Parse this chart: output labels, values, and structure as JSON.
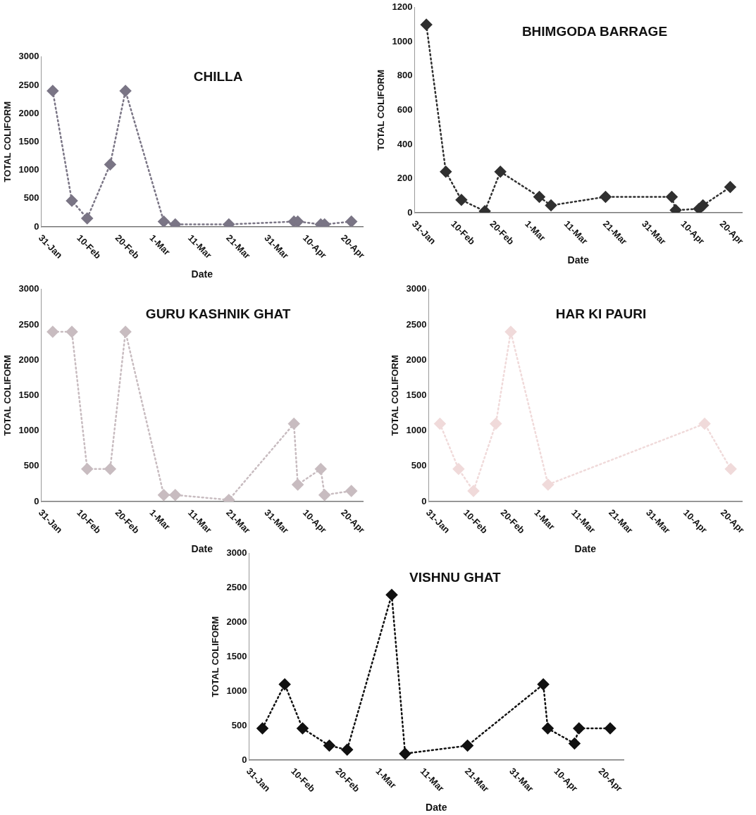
{
  "chart_data": [
    {
      "type": "line",
      "title": "CHILLA",
      "xlabel": "Date",
      "ylabel": "TOTAL COLIFORM",
      "marker": "diamond",
      "line_style": "dotted",
      "color": "#7a7585",
      "x": [
        "--02-03",
        "--02-08",
        "--02-12",
        "--02-18",
        "--02-22",
        "--03-04",
        "--03-07",
        "--03-21",
        "--04-07",
        "--04-08",
        "--04-14",
        "--04-15",
        "--04-22"
      ],
      "values": [
        2400,
        460,
        150,
        1100,
        2400,
        93,
        43,
        43,
        93,
        93,
        43,
        43,
        93
      ],
      "xlim": [
        "--01-31",
        "--04-25"
      ],
      "xticks": [
        {
          "value": "--01-31",
          "label": "31-Jan"
        },
        {
          "value": "--02-10",
          "label": "10-Feb"
        },
        {
          "value": "--02-20",
          "label": "20-Feb"
        },
        {
          "value": "--03-01",
          "label": "1-Mar"
        },
        {
          "value": "--03-11",
          "label": "11-Mar"
        },
        {
          "value": "--03-21",
          "label": "21-Mar"
        },
        {
          "value": "--03-31",
          "label": "31-Mar"
        },
        {
          "value": "--04-10",
          "label": "10-Apr"
        },
        {
          "value": "--04-20",
          "label": "20-Apr"
        }
      ],
      "ylim": [
        0,
        3000
      ],
      "yticks": [
        0,
        500,
        1000,
        1500,
        2000,
        2500,
        3000
      ]
    },
    {
      "type": "line",
      "title": "BHIMGODA BARRAGE",
      "xlabel": "Date",
      "ylabel": "TOTAL COLIFORM",
      "marker": "diamond",
      "line_style": "dotted",
      "color": "#303030",
      "x": [
        "--02-03",
        "--02-08",
        "--02-12",
        "--02-18",
        "--02-22",
        "--03-04",
        "--03-07",
        "--03-21",
        "--04-07",
        "--04-08",
        "--04-14",
        "--04-15",
        "--04-22"
      ],
      "values": [
        1100,
        240,
        75,
        9,
        240,
        93,
        43,
        93,
        93,
        15,
        23,
        43,
        150
      ],
      "xlim": [
        "--01-31",
        "--04-25"
      ],
      "xticks": [
        {
          "value": "--01-31",
          "label": "31-Jan"
        },
        {
          "value": "--02-10",
          "label": "10-Feb"
        },
        {
          "value": "--02-20",
          "label": "20-Feb"
        },
        {
          "value": "--03-01",
          "label": "1-Mar"
        },
        {
          "value": "--03-11",
          "label": "11-Mar"
        },
        {
          "value": "--03-21",
          "label": "21-Mar"
        },
        {
          "value": "--03-31",
          "label": "31-Mar"
        },
        {
          "value": "--04-10",
          "label": "10-Apr"
        },
        {
          "value": "--04-20",
          "label": "20-Apr"
        }
      ],
      "ylim": [
        0,
        1200
      ],
      "yticks": [
        0,
        200,
        400,
        600,
        800,
        1000,
        1200
      ]
    },
    {
      "type": "line",
      "title": "GURU KASHNIK GHAT",
      "xlabel": "Date",
      "ylabel": "TOTAL COLIFORM",
      "marker": "diamond",
      "line_style": "dotted",
      "color": "#c8bcc0",
      "x": [
        "--02-03",
        "--02-08",
        "--02-12",
        "--02-18",
        "--02-22",
        "--03-04",
        "--03-07",
        "--03-21",
        "--04-07",
        "--04-08",
        "--04-14",
        "--04-15",
        "--04-22"
      ],
      "values": [
        2400,
        2400,
        460,
        460,
        2400,
        93,
        93,
        23,
        1100,
        240,
        460,
        93,
        150
      ],
      "xlim": [
        "--01-31",
        "--04-25"
      ],
      "xticks": [
        {
          "value": "--01-31",
          "label": "31-Jan"
        },
        {
          "value": "--02-10",
          "label": "10-Feb"
        },
        {
          "value": "--02-20",
          "label": "20-Feb"
        },
        {
          "value": "--03-01",
          "label": "1-Mar"
        },
        {
          "value": "--03-11",
          "label": "11-Mar"
        },
        {
          "value": "--03-21",
          "label": "21-Mar"
        },
        {
          "value": "--03-31",
          "label": "31-Mar"
        },
        {
          "value": "--04-10",
          "label": "10-Apr"
        },
        {
          "value": "--04-20",
          "label": "20-Apr"
        }
      ],
      "ylim": [
        0,
        3000
      ],
      "yticks": [
        0,
        500,
        1000,
        1500,
        2000,
        2500,
        3000
      ]
    },
    {
      "type": "line",
      "title": "HAR KI PAURI",
      "xlabel": "Date",
      "ylabel": "TOTAL COLIFORM",
      "marker": "diamond",
      "line_style": "dotted",
      "color": "#f0dada",
      "x": [
        "--02-03",
        "--02-08",
        "--02-12",
        "--02-18",
        "--02-22",
        "--03-04",
        "--04-15",
        "--04-22"
      ],
      "values": [
        1100,
        460,
        150,
        1100,
        2400,
        240,
        1100,
        460
      ],
      "xlim": [
        "--01-31",
        "--04-25"
      ],
      "xticks": [
        {
          "value": "--01-31",
          "label": "31-Jan"
        },
        {
          "value": "--02-10",
          "label": "10-Feb"
        },
        {
          "value": "--02-20",
          "label": "20-Feb"
        },
        {
          "value": "--03-01",
          "label": "1-Mar"
        },
        {
          "value": "--03-11",
          "label": "11-Mar"
        },
        {
          "value": "--03-21",
          "label": "21-Mar"
        },
        {
          "value": "--03-31",
          "label": "31-Mar"
        },
        {
          "value": "--04-10",
          "label": "10-Apr"
        },
        {
          "value": "--04-20",
          "label": "20-Apr"
        }
      ],
      "ylim": [
        0,
        3000
      ],
      "yticks": [
        0,
        500,
        1000,
        1500,
        2000,
        2500,
        3000
      ]
    },
    {
      "type": "line",
      "title": "VISHNU GHAT",
      "xlabel": "Date",
      "ylabel": "TOTAL COLIFORM",
      "marker": "diamond",
      "line_style": "dotted",
      "color": "#111111",
      "x": [
        "--02-03",
        "--02-08",
        "--02-12",
        "--02-18",
        "--02-22",
        "--03-04",
        "--03-07",
        "--03-21",
        "--04-07",
        "--04-08",
        "--04-14",
        "--04-15",
        "--04-22"
      ],
      "values": [
        460,
        1100,
        460,
        210,
        150,
        2400,
        93,
        210,
        1100,
        460,
        240,
        460,
        460
      ],
      "xlim": [
        "--01-31",
        "--04-25"
      ],
      "xticks": [
        {
          "value": "--01-31",
          "label": "31-Jan"
        },
        {
          "value": "--02-10",
          "label": "10-Feb"
        },
        {
          "value": "--02-20",
          "label": "20-Feb"
        },
        {
          "value": "--03-01",
          "label": "1-Mar"
        },
        {
          "value": "--03-11",
          "label": "11-Mar"
        },
        {
          "value": "--03-21",
          "label": "21-Mar"
        },
        {
          "value": "--03-31",
          "label": "31-Mar"
        },
        {
          "value": "--04-10",
          "label": "10-Apr"
        },
        {
          "value": "--04-20",
          "label": "20-Apr"
        }
      ],
      "ylim": [
        0,
        3000
      ],
      "yticks": [
        0,
        500,
        1000,
        1500,
        2000,
        2500,
        3000
      ]
    }
  ]
}
